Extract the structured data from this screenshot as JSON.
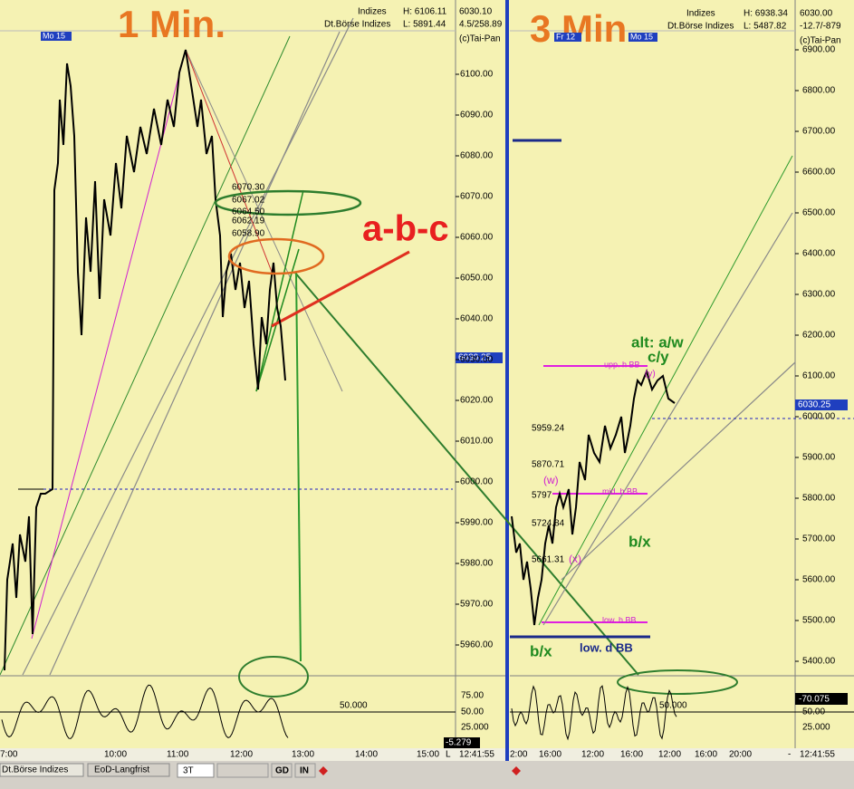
{
  "left_panel": {
    "title": "1 Min.",
    "date_marker": "Mo 15",
    "info": {
      "market": "Indizes",
      "exchange": "Dt.Börse Indizes",
      "high": "H: 6106.11",
      "low": "L: 5891.44",
      "last": "6030.10",
      "change": "4.5/258.89",
      "copyright": "(c)Tai-Pan"
    },
    "price_axis": [
      "6100.00",
      "6090.00",
      "6080.00",
      "6070.00",
      "6060.00",
      "6050.00",
      "6040.00",
      "6030.00",
      "6020.00",
      "6010.00",
      "6000.00",
      "5990.00",
      "5980.00",
      "5970.00",
      "5960.00"
    ],
    "current_price": "6030.25",
    "annotations": {
      "levels": [
        "6070.30",
        "6067.02",
        "6064.50",
        "6062.19",
        "6058.90"
      ],
      "pattern": "a-b-c"
    },
    "oscillator_axis": [
      "75.00",
      "50.00",
      "25.000"
    ],
    "oscillator_level": "50.000",
    "oscillator_value": "-5.279",
    "time_axis": [
      "7:00",
      "10:00",
      "11:00",
      "12:00",
      "13:00",
      "14:00",
      "15:00",
      "L"
    ],
    "clock": "12:41:55"
  },
  "right_panel": {
    "title": "3 Min.",
    "date_markers": [
      "Fr 12",
      "Mo 15"
    ],
    "info": {
      "market": "Indizes",
      "exchange": "Dt.Börse Indizes",
      "high": "H: 6938.34",
      "low": "L: 5487.82",
      "last": "6030.00",
      "change": "-12.7/-879",
      "copyright": "(c)Tai-Pan"
    },
    "price_axis": [
      "6900.00",
      "6800.00",
      "6700.00",
      "6600.00",
      "6500.00",
      "6400.00",
      "6300.00",
      "6200.00",
      "6100.00",
      "6000.00",
      "5900.00",
      "5800.00",
      "5700.00",
      "5600.00",
      "5500.00",
      "5400.00"
    ],
    "current_price": "6030.25",
    "annotations": {
      "alt": "alt: a/w",
      "cy": "c/y",
      "y": "(y)",
      "upper_bb": "upp. h BB",
      "level_1": "5959.24",
      "level_2": "5870.71",
      "w": "(w)",
      "level_3": "5797",
      "mid_bb": "mid. h BB",
      "level_4": "5724.84",
      "level_5": "5661.31",
      "x": "(x)",
      "bx_mid": "b/x",
      "lower_bb": "low. h BB",
      "bx_low": "b/x",
      "lower_d_bb": "low. d BB"
    },
    "oscillator_axis": [
      "-70.075",
      "50.00",
      "25.000"
    ],
    "oscillator_level": "50.000",
    "time_axis": [
      "2:00",
      "16:00",
      "12:00",
      "16:00",
      "12:00",
      "16:00",
      "20:00",
      "-"
    ],
    "clock": "12:41:55"
  },
  "toolbar": {
    "tabs": [
      "Dt.Börse Indizes",
      "EoD-Langfrist"
    ],
    "period": "3T",
    "buttons": [
      "GD",
      "IN"
    ]
  }
}
